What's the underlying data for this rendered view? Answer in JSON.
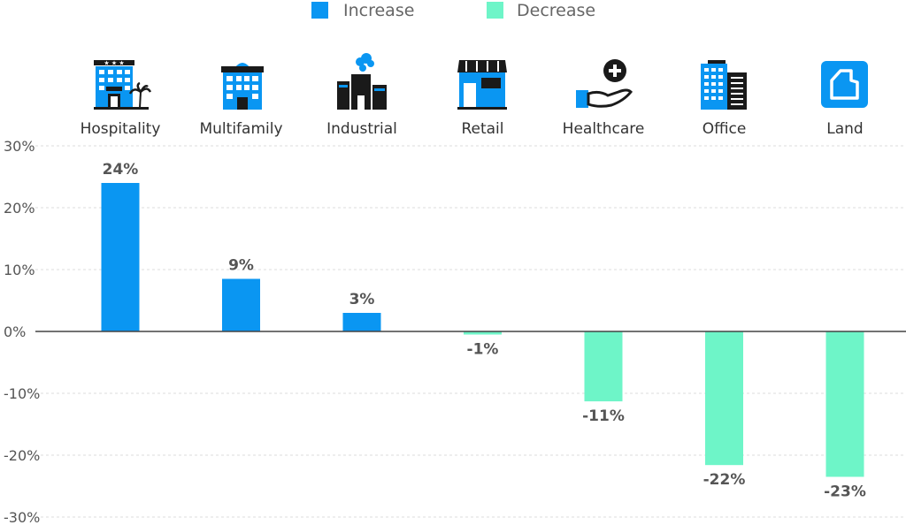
{
  "chart_data": {
    "type": "bar",
    "categories": [
      "Hospitality",
      "Multifamily",
      "Industrial",
      "Retail",
      "Healthcare",
      "Office",
      "Land"
    ],
    "category_icons": [
      "hotel-icon",
      "apartment-building-icon",
      "factory-icon",
      "storefront-icon",
      "healthcare-hand-icon",
      "office-tower-icon",
      "land-parcel-icon"
    ],
    "values": [
      24,
      8.5,
      3,
      -0.5,
      -11.3,
      -21.6,
      -23.5
    ],
    "data_labels": [
      "24%",
      "9%",
      "3%",
      "-1%",
      "-11%",
      "-22%",
      "-23%"
    ],
    "ylim": [
      -30,
      30
    ],
    "yticks": [
      30,
      20,
      10,
      0,
      -10,
      -20,
      -30
    ],
    "ytick_labels": [
      "30%",
      "20%",
      "10%",
      "0%",
      "-10%",
      "-20%",
      "-30%"
    ],
    "legend": {
      "placement": "top-center",
      "items": [
        {
          "label": "Increase",
          "color": "#0a96f2"
        },
        {
          "label": "Decrease",
          "color": "#6ef5c8"
        }
      ]
    },
    "colors": {
      "positive": "#0a96f2",
      "negative": "#6ef5c8",
      "icon_blue": "#0a96f2",
      "icon_dark": "#1a1a1a"
    },
    "grid": true
  }
}
